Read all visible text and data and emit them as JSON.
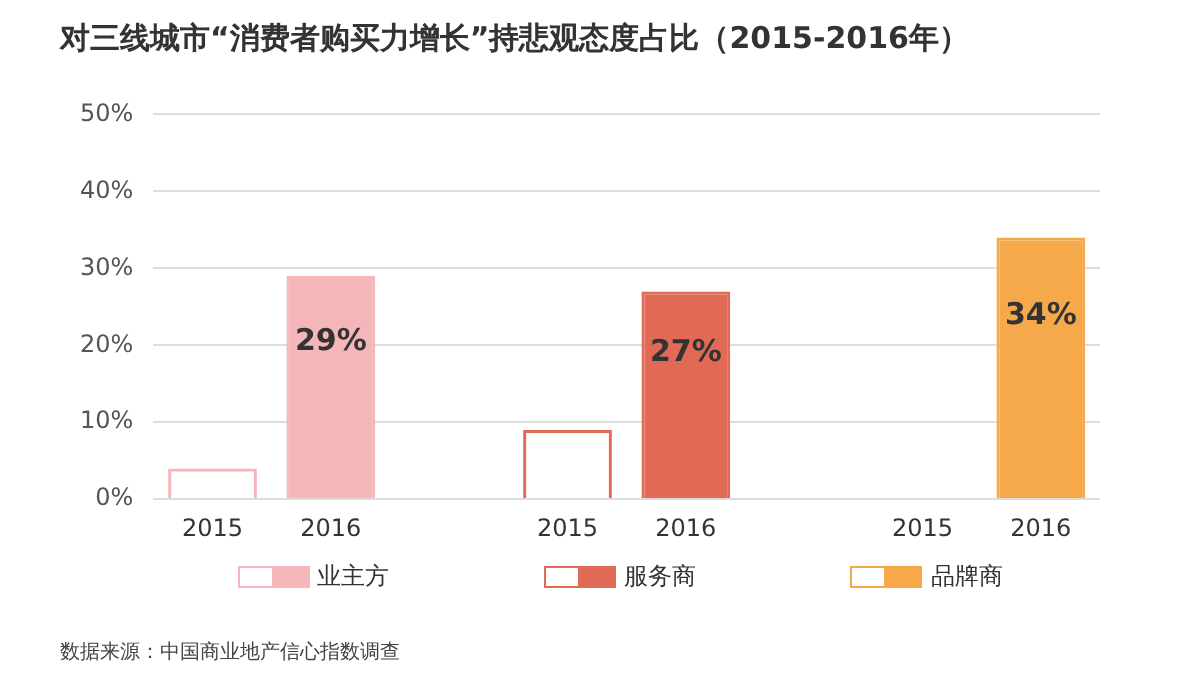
{
  "chart_data": {
    "type": "bar",
    "title": "对三线城市“消费者购买力增长”持悲观态度占比（2015-2016年）",
    "categories": [
      "2015",
      "2016",
      null,
      "2015",
      "2016",
      null,
      "2015",
      "2016"
    ],
    "series": [
      {
        "name": "业主方",
        "color": "#f4b6b9",
        "values": [
          4,
          29,
          null,
          null,
          null,
          null,
          null,
          null
        ],
        "value_labels": [
          null,
          "29%",
          null,
          null,
          null,
          null,
          null,
          null
        ]
      },
      {
        "name": "服务商",
        "color": "#e06a55",
        "values": [
          null,
          null,
          null,
          9,
          27,
          null,
          null,
          null
        ],
        "value_labels": [
          null,
          null,
          null,
          null,
          "27%",
          null,
          null,
          null
        ]
      },
      {
        "name": "品牌商",
        "color": "#f5a94a",
        "values": [
          null,
          null,
          null,
          null,
          null,
          null,
          null,
          34
        ],
        "value_labels": [
          null,
          null,
          null,
          null,
          null,
          null,
          null,
          "34%"
        ]
      }
    ],
    "ylim": [
      0,
      50
    ],
    "yticks": [
      {
        "value": 0,
        "label": "0%"
      },
      {
        "value": 10,
        "label": "10%"
      },
      {
        "value": 20,
        "label": "20%"
      },
      {
        "value": 30,
        "label": "30%"
      },
      {
        "value": 40,
        "label": "40%"
      },
      {
        "value": 50,
        "label": "50%"
      }
    ],
    "grid": "y",
    "legend": "bottom",
    "annotations": [
      "数据来源：中国商业地产信心指数调查"
    ]
  }
}
